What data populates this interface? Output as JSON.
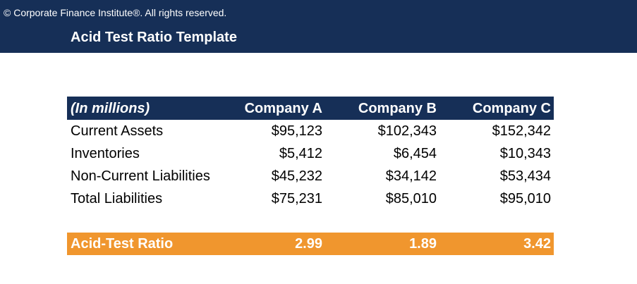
{
  "header": {
    "copyright": "© Corporate Finance Institute®. All rights reserved.",
    "title": "Acid Test Ratio Template"
  },
  "colors": {
    "navy": "#162f57",
    "orange": "#f0962e"
  },
  "table": {
    "columns": [
      "(In millions)",
      "Company A",
      "Company B",
      "Company C"
    ],
    "rows": [
      {
        "label": "Current Assets",
        "values": [
          "$95,123",
          "$102,343",
          "$152,342"
        ]
      },
      {
        "label": "Inventories",
        "values": [
          "$5,412",
          "$6,454",
          "$10,343"
        ]
      },
      {
        "label": "Non-Current Liabilities",
        "values": [
          "$45,232",
          "$34,142",
          "$53,434"
        ]
      },
      {
        "label": "Total Liabilities",
        "values": [
          "$75,231",
          "$85,010",
          "$95,010"
        ]
      }
    ],
    "ratio": {
      "label": "Acid-Test Ratio",
      "values": [
        "2.99",
        "1.89",
        "3.42"
      ]
    }
  }
}
